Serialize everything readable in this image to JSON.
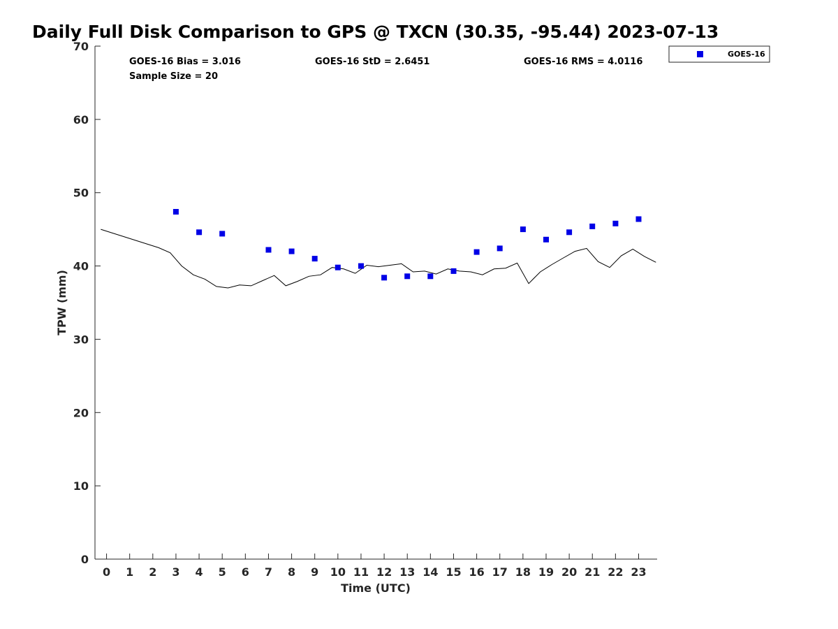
{
  "chart_data": {
    "type": "scatter",
    "title": "Daily Full Disk Comparison to GPS @ TXCN (30.35, -95.44) 2023-07-13",
    "xlabel": "Time (UTC)",
    "ylabel": "TPW (mm)",
    "xlim": [
      -0.5,
      23.8
    ],
    "ylim": [
      0,
      70
    ],
    "x_ticks": [
      "0",
      "1",
      "2",
      "3",
      "4",
      "5",
      "6",
      "7",
      "8",
      "9",
      "10",
      "11",
      "12",
      "13",
      "14",
      "15",
      "16",
      "17",
      "18",
      "19",
      "20",
      "21",
      "22",
      "23"
    ],
    "y_ticks": [
      "0",
      "10",
      "20",
      "30",
      "40",
      "50",
      "60",
      "70"
    ],
    "grid": false,
    "legend_position": "outside top-right",
    "stats": {
      "bias": "GOES-16 Bias = 3.016",
      "std": "GOES-16 StD = 2.6451",
      "rms": "GOES-16 RMS = 4.0116",
      "sample_size": "Sample Size = 20"
    },
    "series": [
      {
        "name": "GOES-16",
        "kind": "scatter",
        "color": "#0000e6",
        "x": [
          3,
          4,
          5,
          7,
          8,
          9,
          10,
          11,
          12,
          13,
          14,
          15,
          16,
          17,
          18,
          19,
          20,
          21,
          22,
          23
        ],
        "y": [
          47.4,
          44.6,
          44.4,
          42.2,
          42.0,
          41.0,
          39.8,
          40.0,
          38.4,
          38.6,
          38.6,
          39.3,
          41.9,
          42.4,
          45.0,
          43.6,
          44.6,
          45.4,
          45.8,
          46.4
        ]
      },
      {
        "kind": "line",
        "color": "#000000",
        "x": [
          -0.25,
          0.25,
          0.75,
          1.25,
          1.75,
          2.25,
          2.75,
          3.25,
          3.75,
          4.25,
          4.75,
          5.25,
          5.75,
          6.25,
          6.75,
          7.25,
          7.75,
          8.25,
          8.75,
          9.25,
          9.75,
          10.25,
          10.75,
          11.25,
          11.75,
          12.25,
          12.75,
          13.25,
          13.75,
          14.25,
          14.75,
          15.25,
          15.75,
          16.25,
          16.75,
          17.25,
          17.75,
          18.25,
          18.75,
          19.25,
          19.75,
          20.25,
          20.75,
          21.25,
          21.75,
          22.25,
          22.75,
          23.25,
          23.75
        ],
        "y": [
          45.0,
          44.5,
          44.0,
          43.5,
          43.0,
          42.5,
          41.8,
          40.0,
          38.8,
          38.2,
          37.2,
          37.0,
          37.4,
          37.3,
          38.0,
          38.7,
          37.3,
          37.9,
          38.6,
          38.8,
          39.8,
          39.6,
          39.0,
          40.1,
          39.9,
          40.1,
          40.3,
          39.2,
          39.3,
          38.9,
          39.6,
          39.3,
          39.2,
          38.8,
          39.6,
          39.7,
          40.4,
          37.6,
          39.2,
          40.2,
          41.1,
          42.0,
          42.4,
          40.6,
          39.8,
          41.4,
          42.3,
          41.3,
          40.5
        ]
      }
    ]
  }
}
